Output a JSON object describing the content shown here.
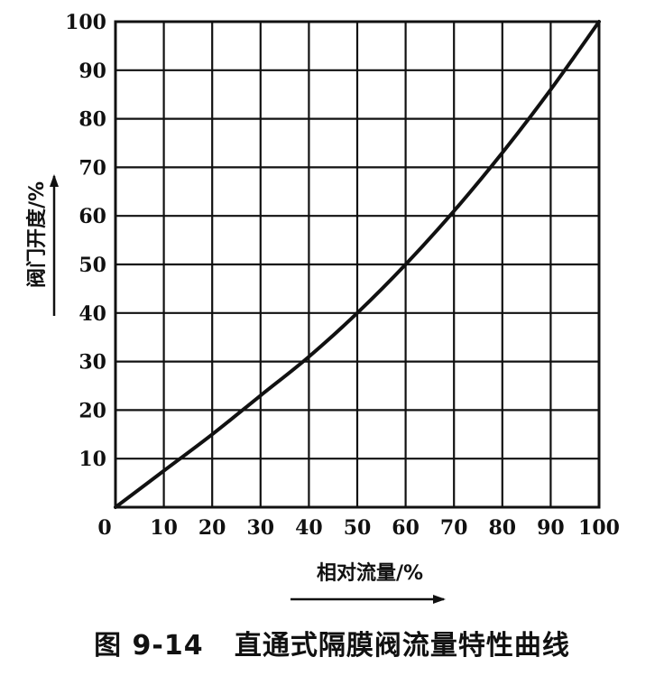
{
  "caption": "图 9-14   直通式隔膜阀流量特性曲线",
  "chart_data": {
    "type": "line",
    "xlabel": "相对流量/%",
    "ylabel": "阀门开度/%",
    "xlim": [
      0,
      100
    ],
    "ylim": [
      0,
      100
    ],
    "grid": true,
    "x_ticks": [
      "0",
      "10",
      "20",
      "30",
      "40",
      "50",
      "60",
      "70",
      "80",
      "90",
      "100"
    ],
    "y_ticks": [
      "10",
      "20",
      "30",
      "40",
      "50",
      "60",
      "70",
      "80",
      "90",
      "100"
    ],
    "series": [
      {
        "x": [
          0,
          10,
          20,
          30,
          40,
          50,
          60,
          70,
          80,
          90,
          100
        ],
        "y": [
          0,
          7.5,
          15,
          23,
          31,
          40,
          50,
          61,
          73,
          86,
          100
        ]
      }
    ]
  }
}
